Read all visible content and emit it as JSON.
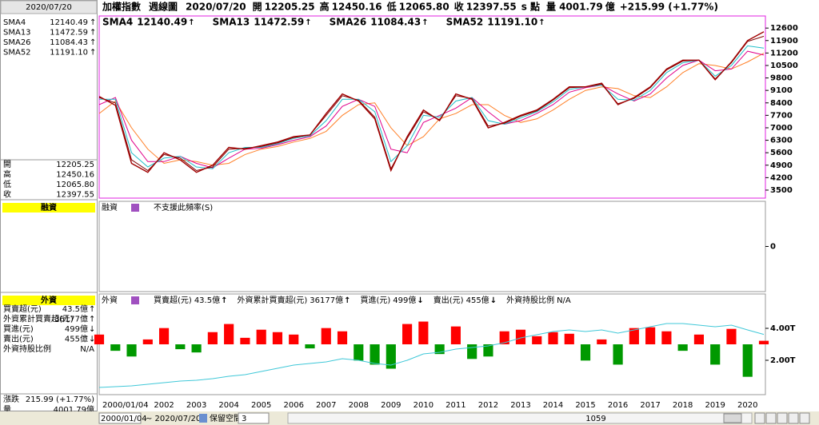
{
  "header": {
    "title": "加權指數",
    "period": "週線圖",
    "date": "2020/07/20",
    "fields": [
      {
        "label": "開",
        "value": "12205.25"
      },
      {
        "label": "高",
        "value": "12450.16"
      },
      {
        "label": "低",
        "value": "12065.80"
      },
      {
        "label": "收",
        "value": "12397.55"
      }
    ],
    "unit": "s 點",
    "volume_label": "量",
    "volume": "4001.79",
    "volume_unit": "億",
    "change": "+215.99 (+1.77%)"
  },
  "side": {
    "change_label": "漲跌",
    "change": "215.99 (+1.77%)",
    "volume_label": "量",
    "volume": "4001.79億"
  },
  "chart_data": [
    {
      "type": "line",
      "color": "#a00000",
      "categories": [
        "2000/01/04",
        null,
        null,
        null,
        "2002",
        null,
        "2003",
        null,
        "2004",
        null,
        "2005",
        null,
        "2006",
        null,
        "2007",
        null,
        "2008",
        null,
        "2009",
        null,
        "2010",
        null,
        "2011",
        null,
        "2012",
        null,
        "2013",
        null,
        "2014",
        null,
        "2015",
        null,
        "2016",
        null,
        "2017",
        null,
        "2018",
        null,
        "2019",
        null,
        "2020",
        null
      ],
      "values": [
        8756,
        8265,
        5000,
        4500,
        5600,
        5200,
        4500,
        4900,
        5900,
        5800,
        6000,
        6200,
        6500,
        6600,
        7800,
        8900,
        8500,
        7500,
        4600,
        6500,
        8000,
        7400,
        8900,
        8600,
        7000,
        7300,
        7700,
        8000,
        8600,
        9300,
        9300,
        9500,
        8300,
        8700,
        9300,
        10300,
        10800,
        10800,
        9700,
        10700,
        11900,
        12397.55
      ],
      "series": [
        {
          "name": "SMA4",
          "current": "12140.49",
          "trend": "↑",
          "color": "#800000",
          "values": [
            8700,
            8400,
            5200,
            4600,
            5500,
            5300,
            4600,
            4800,
            5800,
            5850,
            5950,
            6150,
            6450,
            6600,
            7700,
            8800,
            8550,
            7600,
            4700,
            6400,
            7900,
            7450,
            8800,
            8650,
            7100,
            7250,
            7650,
            7950,
            8550,
            9250,
            9300,
            9450,
            8350,
            8650,
            9250,
            10250,
            10750,
            10800,
            9750,
            10650,
            11850,
            12140.49
          ]
        },
        {
          "name": "SMA13",
          "current": "11472.59",
          "trend": "↑",
          "color": "#1fbfc8",
          "values": [
            8600,
            8600,
            5600,
            4800,
            5300,
            5400,
            4800,
            4700,
            5600,
            5900,
            5900,
            6100,
            6400,
            6550,
            7400,
            8600,
            8600,
            7900,
            5100,
            6000,
            7700,
            7600,
            8500,
            8700,
            7400,
            7200,
            7550,
            7900,
            8450,
            9150,
            9300,
            9400,
            8600,
            8550,
            9100,
            10100,
            10650,
            10800,
            9900,
            10500,
            11600,
            11472.59
          ]
        },
        {
          "name": "SMA26",
          "current": "11084.43",
          "trend": "↑",
          "color": "#e0008a",
          "values": [
            8300,
            8700,
            6300,
            5100,
            5100,
            5400,
            5000,
            4750,
            5300,
            5800,
            5850,
            6050,
            6300,
            6500,
            7100,
            8200,
            8600,
            8200,
            5800,
            5600,
            7300,
            7700,
            8100,
            8700,
            7900,
            7200,
            7400,
            7800,
            8300,
            9000,
            9250,
            9400,
            8900,
            8500,
            8900,
            9800,
            10500,
            10800,
            10200,
            10300,
            11300,
            11084.43
          ]
        },
        {
          "name": "SMA52",
          "current": "11191.10",
          "trend": "↑",
          "color": "#ff7f27",
          "values": [
            7800,
            8500,
            7000,
            5800,
            5000,
            5200,
            5100,
            4900,
            5000,
            5500,
            5800,
            5950,
            6200,
            6400,
            6800,
            7700,
            8300,
            8400,
            7000,
            6000,
            6500,
            7500,
            7800,
            8300,
            8300,
            7700,
            7300,
            7500,
            8000,
            8600,
            9100,
            9300,
            9200,
            8800,
            8700,
            9300,
            10100,
            10600,
            10500,
            10300,
            10700,
            11191.1
          ]
        }
      ],
      "ylim": [
        3050,
        13280
      ],
      "yticks": [
        3500,
        4200,
        4900,
        5600,
        6300,
        7000,
        7700,
        8400,
        9100,
        9800,
        10500,
        11200,
        11900,
        12600
      ]
    },
    {
      "type": "bar",
      "title": "融資",
      "note": "不支援此頻率(S)",
      "ylim": [
        -1,
        1
      ],
      "yticks": [
        0
      ]
    },
    {
      "type": "bar",
      "title": "外資",
      "series": [
        {
          "name": "買賣超(元)",
          "current": "43.5億",
          "trend": "↑",
          "color": "#ff4fa0",
          "up_color": "#ff0000",
          "down_color": "#009900",
          "axis": "y2",
          "values": [
            120,
            -80,
            -150,
            60,
            200,
            -60,
            -100,
            150,
            250,
            80,
            180,
            150,
            120,
            -50,
            200,
            160,
            -200,
            -250,
            -300,
            250,
            280,
            -120,
            220,
            -180,
            -150,
            160,
            180,
            100,
            150,
            130,
            -200,
            60,
            -250,
            200,
            210,
            160,
            -80,
            120,
            -250,
            190,
            -400,
            43.5
          ]
        },
        {
          "name": "外資累計買賣超(元)",
          "current": "36177億",
          "trend": "↑",
          "color": "#40c8d8",
          "values": [
            0.3,
            0.35,
            0.4,
            0.5,
            0.6,
            0.7,
            0.75,
            0.85,
            1.0,
            1.1,
            1.3,
            1.5,
            1.7,
            1.8,
            1.9,
            2.1,
            2.0,
            1.8,
            1.7,
            2.0,
            2.4,
            2.5,
            2.7,
            2.8,
            2.9,
            3.1,
            3.4,
            3.6,
            3.8,
            3.9,
            3.8,
            3.9,
            3.7,
            3.9,
            4.1,
            4.3,
            4.3,
            4.2,
            4.1,
            4.2,
            3.9,
            3.6177
          ]
        }
      ],
      "extra_legend": [
        {
          "name": "買進(元)",
          "current": "499億",
          "trend": "↓",
          "color": "#ffa040"
        },
        {
          "name": "賣出(元)",
          "current": "455億",
          "trend": "↓",
          "color": "#2080c0"
        },
        {
          "name": "外資持股比例",
          "current": "N/A",
          "color": "#80c040"
        }
      ],
      "ylim": [
        -0.05,
        6.05
      ],
      "yticks": [
        {
          "value": 2,
          "label": "2.00T"
        },
        {
          "value": 4,
          "label": "4.00T"
        }
      ],
      "y2lim": [
        -600,
        600
      ]
    }
  ],
  "footer": {
    "start": "2000/01/04",
    "end": "~ 2020/07/20",
    "reserve": "保留空間",
    "reserve_value": "3",
    "count": "1059"
  }
}
